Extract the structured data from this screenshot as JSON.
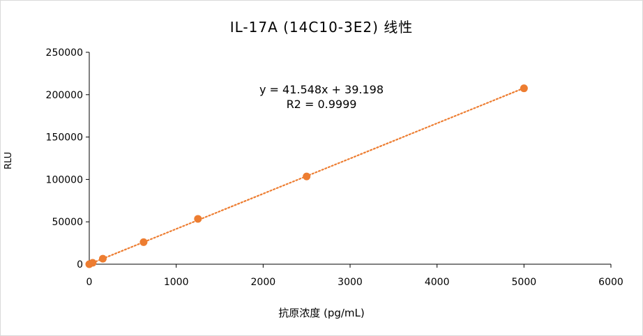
{
  "chart_data": {
    "type": "scatter",
    "title": "IL-17A (14C10-3E2) 线性",
    "xlabel": "抗原浓度 (pg/mL)",
    "ylabel": "RLU",
    "xlim": [
      0,
      6000
    ],
    "ylim": [
      0,
      250000
    ],
    "x_ticks": [
      "0",
      "1000",
      "2000",
      "3000",
      "4000",
      "5000",
      "6000"
    ],
    "y_ticks": [
      "0",
      "50000",
      "100000",
      "150000",
      "200000",
      "250000"
    ],
    "points": [
      {
        "x": 0,
        "y": 0
      },
      {
        "x": 39,
        "y": 1600
      },
      {
        "x": 156,
        "y": 6500
      },
      {
        "x": 625,
        "y": 26000
      },
      {
        "x": 1250,
        "y": 53500
      },
      {
        "x": 2500,
        "y": 103500
      },
      {
        "x": 5000,
        "y": 207500
      }
    ],
    "trendline": {
      "slope": 41.548,
      "intercept": 39.198,
      "style": "dotted"
    },
    "equation": "y = 41.548x + 39.198",
    "r2": "R2 = 0.9999",
    "grid": false,
    "colors": {
      "marker": "#ED7D31",
      "trendline": "#ED7D31",
      "axis": "#000000"
    }
  }
}
